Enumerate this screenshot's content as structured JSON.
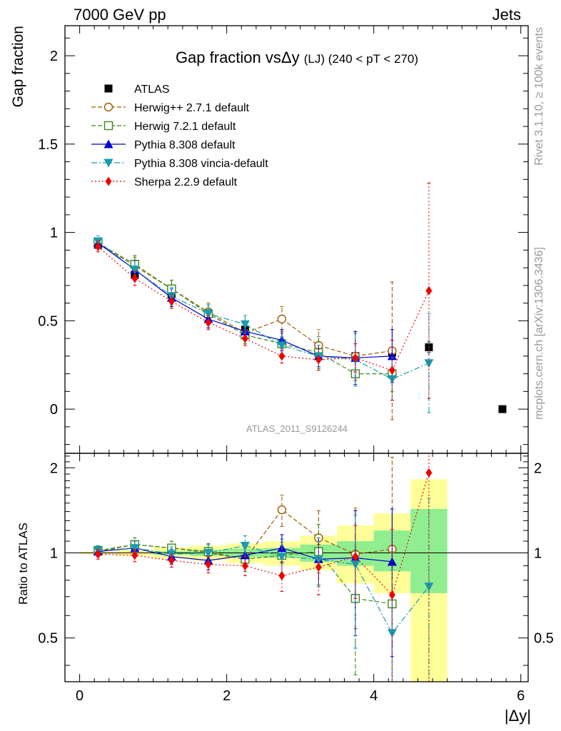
{
  "header": {
    "left": "7000 GeV pp",
    "right": "Jets"
  },
  "side_text": {
    "rivet": "Rivet 3.1.10, ≥ 100k events",
    "mcplots": "mcplots.cern.ch [arXiv:1306.3436]"
  },
  "chart_data": [
    {
      "type": "scatter",
      "panel": "main",
      "title": "Gap fraction vsΔy",
      "title_suffix": "(LJ) (240 < pT < 270)",
      "ylabel": "Gap fraction",
      "watermark": "ATLAS_2011_S9126244",
      "xlim": [
        -0.2,
        6.1
      ],
      "ylim": [
        -0.25,
        2.17
      ],
      "yticks": [
        0,
        0.5,
        1,
        1.5,
        2
      ],
      "ytick_labels": [
        "0",
        "0.5",
        "1",
        "1.5",
        "2"
      ],
      "legend_position": "top-left",
      "x": [
        0.25,
        0.75,
        1.25,
        1.75,
        2.25,
        2.75,
        3.25,
        3.75,
        4.25,
        4.75,
        5.75
      ],
      "series": [
        {
          "name": "ATLAS",
          "color": "#000000",
          "marker": "square-filled",
          "line": "none",
          "values": [
            0.93,
            0.76,
            0.65,
            0.54,
            0.45,
            0.37,
            0.32,
            0.3,
            0.32,
            0.35,
            0.0
          ],
          "errors": [
            0.01,
            0.01,
            0.01,
            0.02,
            0.02,
            0.02,
            0.02,
            0.02,
            0.03,
            0.03,
            0.01
          ]
        },
        {
          "name": "Herwig++ 2.7.1 default",
          "color": "#a05a00",
          "marker": "circle-open",
          "line": "dashed",
          "values": [
            0.94,
            0.81,
            0.68,
            0.55,
            0.43,
            0.51,
            0.36,
            0.3,
            0.33,
            null,
            null
          ],
          "errors": [
            0.03,
            0.05,
            0.05,
            0.05,
            0.06,
            0.07,
            0.09,
            0.14,
            0.39,
            null,
            null
          ]
        },
        {
          "name": "Herwig 7.2.1 default",
          "color": "#3a8a1a",
          "marker": "square-open",
          "line": "dashed",
          "values": [
            0.94,
            0.82,
            0.68,
            0.54,
            0.42,
            0.37,
            0.32,
            0.2,
            0.2,
            null,
            null
          ],
          "errors": [
            0.03,
            0.05,
            0.05,
            0.05,
            0.05,
            0.06,
            0.09,
            0.07,
            0.1,
            null,
            null
          ]
        },
        {
          "name": "Pythia 8.308 default",
          "color": "#0000cc",
          "marker": "triangle-up",
          "line": "solid",
          "values": [
            0.94,
            0.79,
            0.63,
            0.51,
            0.44,
            0.39,
            0.3,
            0.29,
            0.3,
            null,
            null
          ],
          "errors": [
            0.03,
            0.05,
            0.05,
            0.05,
            0.05,
            0.06,
            0.06,
            0.15,
            0.15,
            null,
            null
          ]
        },
        {
          "name": "Pythia 8.308 vincia-default",
          "color": "#1a9ab0",
          "marker": "triangle-down",
          "line": "dashdot",
          "values": [
            0.95,
            0.79,
            0.64,
            0.54,
            0.48,
            0.36,
            0.3,
            0.28,
            0.17,
            0.26,
            null
          ],
          "errors": [
            0.03,
            0.05,
            0.05,
            0.05,
            0.05,
            0.05,
            0.06,
            0.15,
            0.12,
            0.28,
            null
          ]
        },
        {
          "name": "Sherpa 2.2.9 default",
          "color": "#ee0000",
          "marker": "diamond",
          "line": "dotted",
          "values": [
            0.92,
            0.74,
            0.61,
            0.49,
            0.4,
            0.3,
            0.28,
            0.29,
            0.22,
            0.67,
            null
          ],
          "errors": [
            0.03,
            0.04,
            0.04,
            0.04,
            0.04,
            0.04,
            0.06,
            0.08,
            0.17,
            0.61,
            null
          ]
        }
      ]
    },
    {
      "type": "scatter",
      "panel": "ratio",
      "ylabel": "Ratio to ATLAS",
      "xlabel": "|Δy|",
      "xlim": [
        -0.2,
        6.1
      ],
      "ylim": [
        0.35,
        2.25
      ],
      "xticks": [
        0,
        2,
        4,
        6
      ],
      "xtick_labels": [
        "0",
        "2",
        "4",
        "6"
      ],
      "yticks": [
        0.5,
        1,
        2
      ],
      "ytick_labels": [
        "0.5",
        "1",
        "2"
      ],
      "x": [
        0.25,
        0.75,
        1.25,
        1.75,
        2.25,
        2.75,
        3.25,
        3.75,
        4.25,
        4.75
      ],
      "bands": {
        "bin_edges": [
          0,
          0.5,
          1,
          1.5,
          2,
          2.5,
          3,
          3.5,
          4,
          4.5,
          5
        ],
        "inner": {
          "color": "#90ee90",
          "lo": [
            1.0,
            1.0,
            0.985,
            0.975,
            0.965,
            0.96,
            0.93,
            0.9,
            0.86,
            0.72
          ],
          "hi": [
            1.0,
            1.0,
            1.015,
            1.025,
            1.035,
            1.04,
            1.07,
            1.1,
            1.2,
            1.43
          ]
        },
        "outer": {
          "color": "#ffff99",
          "lo": [
            0.99,
            0.975,
            0.955,
            0.94,
            0.92,
            0.9,
            0.87,
            0.78,
            0.72,
            0.35
          ],
          "hi": [
            1.01,
            1.025,
            1.045,
            1.06,
            1.08,
            1.1,
            1.15,
            1.25,
            1.38,
            1.82
          ]
        }
      },
      "series": [
        {
          "name": "Herwig++ 2.7.1 default",
          "color": "#a05a00",
          "marker": "circle-open",
          "line": "dashed",
          "values": [
            1.01,
            1.07,
            1.04,
            1.0,
            0.95,
            1.42,
            1.13,
            0.99,
            1.03,
            null
          ],
          "errors": [
            0.04,
            0.06,
            0.06,
            0.07,
            0.09,
            0.18,
            0.28,
            0.45,
            1.15,
            null
          ]
        },
        {
          "name": "Herwig 7.2.1 default",
          "color": "#3a8a1a",
          "marker": "square-open",
          "line": "dashed",
          "values": [
            1.02,
            1.07,
            1.04,
            1.01,
            0.95,
            0.98,
            1.01,
            0.69,
            0.66,
            null
          ],
          "errors": [
            0.04,
            0.06,
            0.06,
            0.07,
            0.09,
            0.14,
            0.25,
            0.32,
            0.35,
            null
          ]
        },
        {
          "name": "Pythia 8.308 default",
          "color": "#0000cc",
          "marker": "triangle-up",
          "line": "solid",
          "values": [
            1.01,
            1.04,
            0.97,
            0.94,
            0.98,
            1.04,
            0.95,
            0.96,
            0.93,
            null
          ],
          "errors": [
            0.04,
            0.06,
            0.06,
            0.07,
            0.09,
            0.12,
            0.18,
            0.45,
            0.5,
            null
          ]
        },
        {
          "name": "Pythia 8.308 vincia-default",
          "color": "#1a9ab0",
          "marker": "triangle-down",
          "line": "dashdot",
          "values": [
            1.02,
            1.04,
            0.99,
            1.0,
            1.06,
            0.97,
            0.95,
            0.91,
            0.52,
            0.76
          ],
          "errors": [
            0.04,
            0.06,
            0.06,
            0.07,
            0.09,
            0.12,
            0.18,
            0.45,
            0.35,
            0.8
          ]
        },
        {
          "name": "Sherpa 2.2.9 default",
          "color": "#ee0000",
          "marker": "diamond",
          "line": "dotted",
          "values": [
            0.99,
            0.98,
            0.94,
            0.91,
            0.9,
            0.83,
            0.89,
            0.97,
            0.71,
            1.92
          ],
          "errors": [
            0.04,
            0.05,
            0.05,
            0.06,
            0.07,
            0.1,
            0.18,
            0.28,
            0.5,
            1.7
          ]
        }
      ]
    }
  ]
}
